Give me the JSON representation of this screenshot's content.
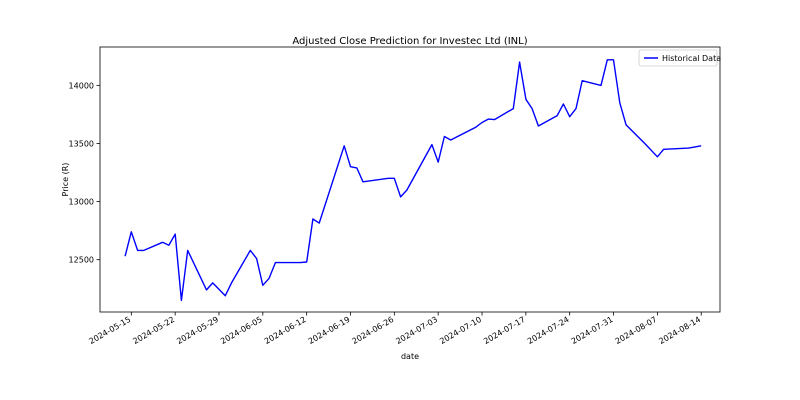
{
  "chart_data": {
    "type": "line",
    "title": "Adjusted Close Prediction for Investec Ltd (INL)",
    "xlabel": "date",
    "ylabel": "Price (R)",
    "legend_position": "top-right",
    "grid": false,
    "xlim": [
      "2024-05-10",
      "2024-08-17"
    ],
    "ylim": [
      12050,
      14330
    ],
    "x_ticks": [
      "2024-05-15",
      "2024-05-22",
      "2024-05-29",
      "2024-06-05",
      "2024-06-12",
      "2024-06-19",
      "2024-06-26",
      "2024-07-03",
      "2024-07-10",
      "2024-07-17",
      "2024-07-24",
      "2024-07-31",
      "2024-08-07",
      "2024-08-14"
    ],
    "y_ticks": [
      12500,
      13000,
      13500,
      14000
    ],
    "series": [
      {
        "name": "Historical Data",
        "color": "#0000ff",
        "x": [
          "2024-05-14",
          "2024-05-15",
          "2024-05-16",
          "2024-05-17",
          "2024-05-20",
          "2024-05-21",
          "2024-05-22",
          "2024-05-23",
          "2024-05-24",
          "2024-05-27",
          "2024-05-28",
          "2024-05-30",
          "2024-05-31",
          "2024-06-03",
          "2024-06-04",
          "2024-06-05",
          "2024-06-06",
          "2024-06-07",
          "2024-06-11",
          "2024-06-12",
          "2024-06-13",
          "2024-06-14",
          "2024-06-18",
          "2024-06-19",
          "2024-06-20",
          "2024-06-21",
          "2024-06-25",
          "2024-06-26",
          "2024-06-27",
          "2024-06-28",
          "2024-07-02",
          "2024-07-03",
          "2024-07-04",
          "2024-07-05",
          "2024-07-09",
          "2024-07-10",
          "2024-07-11",
          "2024-07-12",
          "2024-07-15",
          "2024-07-16",
          "2024-07-17",
          "2024-07-18",
          "2024-07-19",
          "2024-07-22",
          "2024-07-23",
          "2024-07-24",
          "2024-07-25",
          "2024-07-26",
          "2024-07-29",
          "2024-07-30",
          "2024-07-31",
          "2024-08-01",
          "2024-08-02",
          "2024-08-05",
          "2024-08-07",
          "2024-08-08",
          "2024-08-12",
          "2024-08-14"
        ],
        "y": [
          12530,
          12740,
          12580,
          12580,
          12650,
          12625,
          12720,
          12150,
          12580,
          12240,
          12300,
          12190,
          12300,
          12580,
          12510,
          12280,
          12340,
          12475,
          12475,
          12480,
          12850,
          12815,
          13480,
          13300,
          13290,
          13170,
          13200,
          13200,
          13040,
          13100,
          13490,
          13340,
          13560,
          13530,
          13640,
          13680,
          13710,
          13705,
          13800,
          14200,
          13880,
          13800,
          13650,
          13740,
          13840,
          13730,
          13800,
          14040,
          14000,
          14220,
          14220,
          13850,
          13660,
          13500,
          13385,
          13450,
          13460,
          13480
        ]
      }
    ]
  }
}
